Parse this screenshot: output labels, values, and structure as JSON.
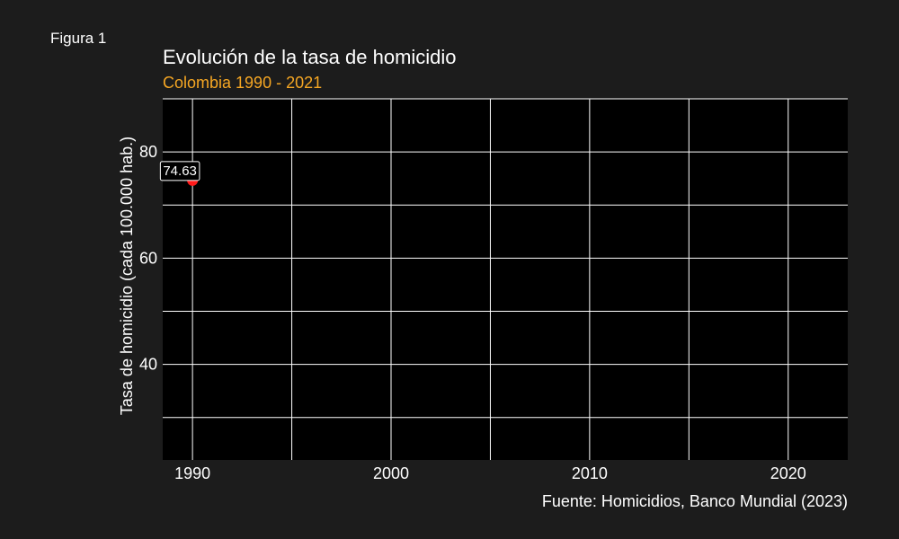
{
  "figure_label": "Figura 1",
  "caption": "Fuente: Homicidios, Banco Mundial (2023)",
  "colors": {
    "background": "#1c1c1c",
    "panel": "#000000",
    "grid": "#ffffff",
    "text": "#ffffff",
    "subtitle": "#f5a623",
    "point": "#ff1a1a"
  },
  "chart_data": {
    "type": "scatter",
    "title": "Evolución de la tasa de homicidio",
    "subtitle": "Colombia 1990 - 2021",
    "xlabel": "",
    "ylabel": "Tasa de homicidio (cada 100.000 hab.)",
    "xlim": [
      1988.5,
      2023
    ],
    "ylim": [
      22,
      90
    ],
    "x_ticks": [
      1990,
      2000,
      2010,
      2020
    ],
    "y_ticks": [
      40,
      60,
      80
    ],
    "grid": true,
    "legend": "none",
    "points": [
      {
        "x": 1990,
        "y": 74.63,
        "label": "74.63"
      }
    ]
  }
}
